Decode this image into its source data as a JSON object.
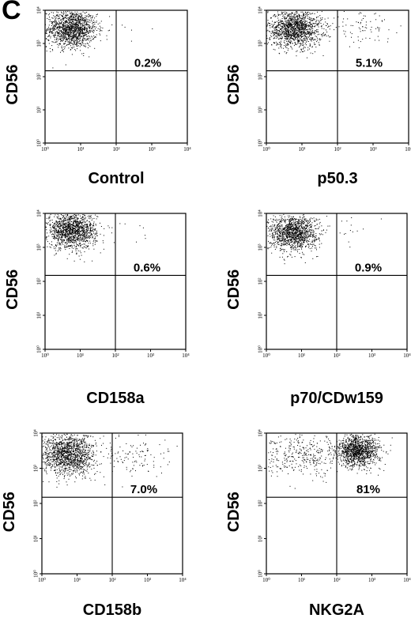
{
  "figure": {
    "panel_letter": "C"
  },
  "chart_data": [
    {
      "type": "scatter",
      "title": "Control",
      "ylabel": "CD56",
      "xlabel": "",
      "x_scale": "log",
      "y_scale": "log",
      "xlim": [
        1,
        10000
      ],
      "ylim": [
        1,
        10000
      ],
      "x_ticks": [
        "10⁰",
        "10¹",
        "10²",
        "10³",
        "10⁴"
      ],
      "y_ticks": [
        "10⁰",
        "10¹",
        "10²",
        "10³",
        "10⁴"
      ],
      "quadrant_gate": {
        "x": 100,
        "y": 150
      },
      "annotations": [
        "0.2%"
      ],
      "populations": [
        {
          "x_log_center": 0.75,
          "y_log_center": 3.45,
          "x_log_spread": 0.35,
          "y_log_spread": 0.28,
          "count": 1400
        },
        {
          "x_log_center": 2.55,
          "y_log_center": 3.55,
          "x_log_spread": 0.3,
          "y_log_spread": 0.2,
          "count": 5
        }
      ]
    },
    {
      "type": "scatter",
      "title": "p50.3",
      "ylabel": "CD56",
      "xlabel": "",
      "x_scale": "log",
      "y_scale": "log",
      "xlim": [
        1,
        10000
      ],
      "ylim": [
        1,
        10000
      ],
      "x_ticks": [
        "10⁰",
        "10¹",
        "10²",
        "10³",
        "10⁴"
      ],
      "y_ticks": [
        "10⁰",
        "10¹",
        "10²",
        "10³",
        "10⁴"
      ],
      "quadrant_gate": {
        "x": 100,
        "y": 150
      },
      "annotations": [
        "5.1%"
      ],
      "populations": [
        {
          "x_log_center": 0.8,
          "y_log_center": 3.45,
          "x_log_spread": 0.38,
          "y_log_spread": 0.28,
          "count": 1400
        },
        {
          "x_log_center": 2.7,
          "y_log_center": 3.5,
          "x_log_spread": 0.45,
          "y_log_spread": 0.22,
          "count": 80
        }
      ]
    },
    {
      "type": "scatter",
      "title": "CD158a",
      "ylabel": "CD56",
      "xlabel": "",
      "x_scale": "log",
      "y_scale": "log",
      "xlim": [
        1,
        10000
      ],
      "ylim": [
        1,
        10000
      ],
      "x_ticks": [
        "10⁰",
        "10¹",
        "10²",
        "10³",
        "10⁴"
      ],
      "y_ticks": [
        "10⁰",
        "10¹",
        "10²",
        "10³",
        "10⁴"
      ],
      "quadrant_gate": {
        "x": 100,
        "y": 150
      },
      "annotations": [
        "0.6%"
      ],
      "populations": [
        {
          "x_log_center": 0.75,
          "y_log_center": 3.5,
          "x_log_spread": 0.35,
          "y_log_spread": 0.26,
          "count": 1400
        },
        {
          "x_log_center": 2.5,
          "y_log_center": 3.5,
          "x_log_spread": 0.35,
          "y_log_spread": 0.2,
          "count": 10
        }
      ]
    },
    {
      "type": "scatter",
      "title": "p70/CDw159",
      "ylabel": "CD56",
      "xlabel": "",
      "x_scale": "log",
      "y_scale": "log",
      "xlim": [
        1,
        10000
      ],
      "ylim": [
        1,
        10000
      ],
      "x_ticks": [
        "10⁰",
        "10¹",
        "10²",
        "10³",
        "10⁴"
      ],
      "y_ticks": [
        "10⁰",
        "10¹",
        "10²",
        "10³",
        "10⁴"
      ],
      "quadrant_gate": {
        "x": 100,
        "y": 150
      },
      "annotations": [
        "0.9%"
      ],
      "populations": [
        {
          "x_log_center": 0.75,
          "y_log_center": 3.45,
          "x_log_spread": 0.35,
          "y_log_spread": 0.26,
          "count": 1300
        },
        {
          "x_log_center": 2.5,
          "y_log_center": 3.5,
          "x_log_spread": 0.35,
          "y_log_spread": 0.2,
          "count": 14
        }
      ]
    },
    {
      "type": "scatter",
      "title": "CD158b",
      "ylabel": "CD56",
      "xlabel": "",
      "x_scale": "log",
      "y_scale": "log",
      "xlim": [
        1,
        10000
      ],
      "ylim": [
        1,
        10000
      ],
      "x_ticks": [
        "10⁰",
        "10¹",
        "10²",
        "10³",
        "10⁴"
      ],
      "y_ticks": [
        "10⁰",
        "10¹",
        "10²",
        "10³",
        "10⁴"
      ],
      "quadrant_gate": {
        "x": 100,
        "y": 150
      },
      "annotations": [
        "7.0%"
      ],
      "populations": [
        {
          "x_log_center": 0.75,
          "y_log_center": 3.4,
          "x_log_spread": 0.38,
          "y_log_spread": 0.3,
          "count": 1400
        },
        {
          "x_log_center": 2.7,
          "y_log_center": 3.4,
          "x_log_spread": 0.45,
          "y_log_spread": 0.28,
          "count": 110
        }
      ]
    },
    {
      "type": "scatter",
      "title": "NKG2A",
      "ylabel": "CD56",
      "xlabel": "",
      "x_scale": "log",
      "y_scale": "log",
      "xlim": [
        1,
        10000
      ],
      "ylim": [
        1,
        10000
      ],
      "x_ticks": [
        "10⁰",
        "10¹",
        "10²",
        "10³",
        "10⁴"
      ],
      "y_ticks": [
        "10⁰",
        "10¹",
        "10²",
        "10³",
        "10⁴"
      ],
      "quadrant_gate": {
        "x": 100,
        "y": 150
      },
      "annotations": [
        "81%"
      ],
      "populations": [
        {
          "x_log_center": 2.6,
          "y_log_center": 3.5,
          "x_log_spread": 0.3,
          "y_log_spread": 0.22,
          "count": 1200
        },
        {
          "x_log_center": 1.0,
          "y_log_center": 3.35,
          "x_log_spread": 0.6,
          "y_log_spread": 0.3,
          "count": 350
        }
      ]
    }
  ]
}
